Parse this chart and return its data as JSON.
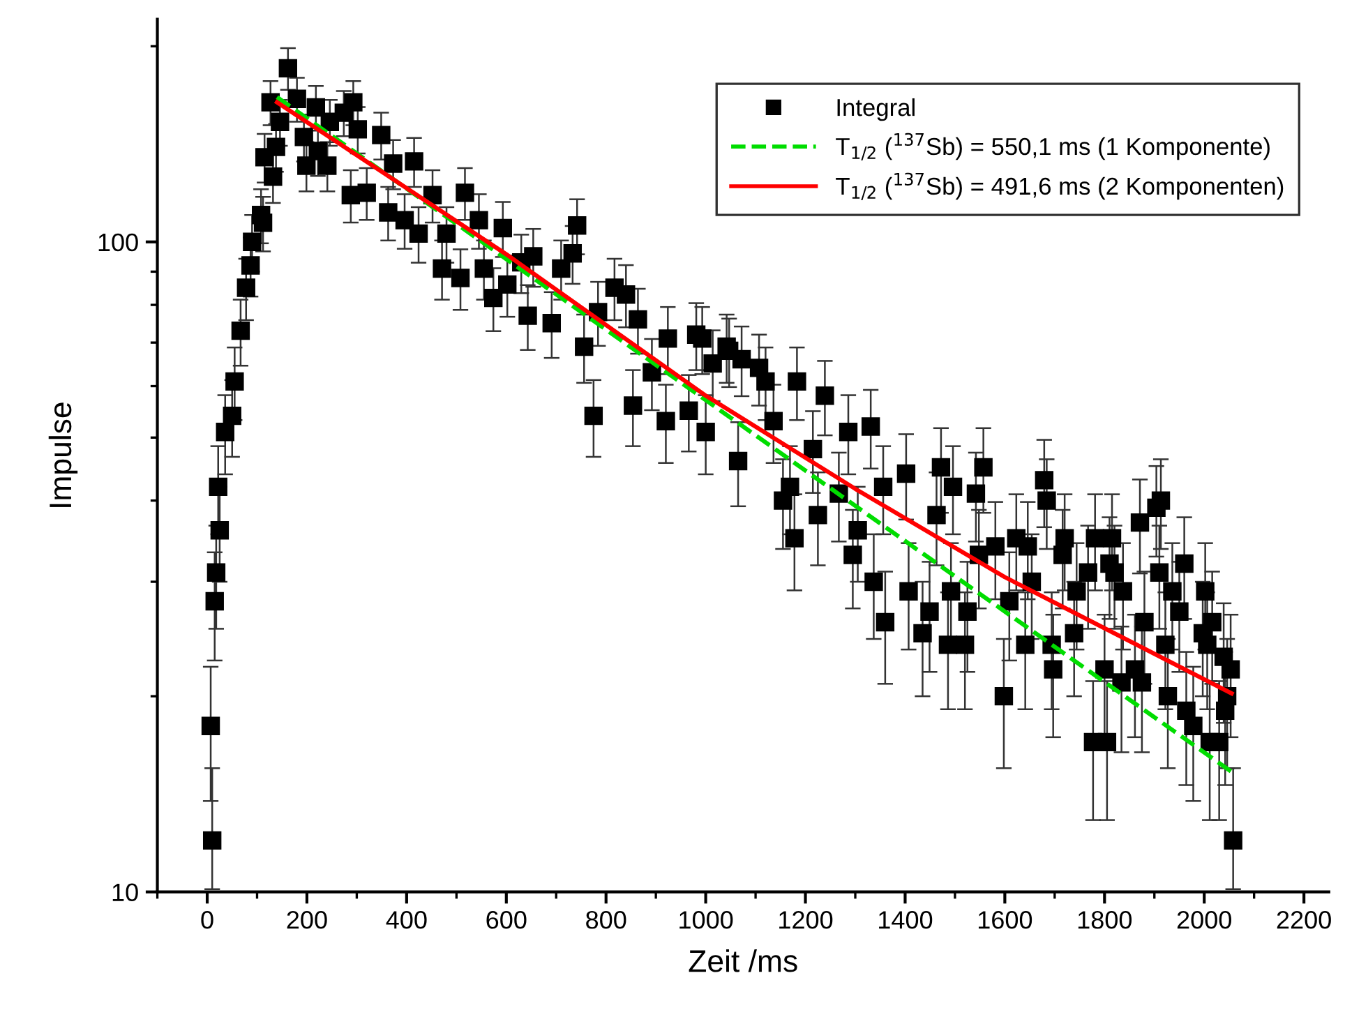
{
  "chart_data": {
    "type": "scatter",
    "xlabel": "Zeit /ms",
    "ylabel": "Impulse",
    "log": "y",
    "legend": "top right",
    "xlim": [
      -100,
      2250
    ],
    "xticks": [
      0,
      200,
      400,
      600,
      800,
      1000,
      1200,
      1400,
      1600,
      1800,
      2000,
      2200
    ],
    "ylim": [
      10,
      220
    ],
    "yticks": [
      10,
      100
    ],
    "series": [
      {
        "name": "Integral",
        "marker": "square",
        "color": "#000000",
        "x": [
          7,
          10,
          15,
          18,
          22,
          25,
          36,
          50,
          55,
          67,
          78,
          87,
          90,
          108,
          112,
          115,
          127,
          132,
          138,
          146,
          162,
          180,
          194,
          199,
          218,
          222,
          241,
          246,
          274,
          288,
          293,
          302,
          320,
          349,
          363,
          373,
          396,
          415,
          424,
          452,
          471,
          480,
          508,
          517,
          545,
          555,
          574,
          593,
          602,
          630,
          643,
          654,
          691,
          710,
          733,
          742,
          756,
          775,
          784,
          817,
          840,
          854,
          864,
          892,
          920,
          924,
          966,
          981,
          993,
          1000,
          1014,
          1042,
          1047,
          1065,
          1072,
          1107,
          1120,
          1136,
          1155,
          1169,
          1178,
          1183,
          1215,
          1225,
          1239,
          1267,
          1286,
          1295,
          1305,
          1331,
          1337,
          1356,
          1360,
          1402,
          1407,
          1435,
          1449,
          1463,
          1472,
          1486,
          1492,
          1496,
          1520,
          1525,
          1542,
          1548,
          1557,
          1581,
          1598,
          1609,
          1623,
          1641,
          1646,
          1654,
          1679,
          1684,
          1694,
          1697,
          1716,
          1720,
          1739,
          1744,
          1767,
          1777,
          1781,
          1800,
          1805,
          1810,
          1815,
          1820,
          1834,
          1837,
          1861,
          1871,
          1875,
          1880,
          1904,
          1910,
          1913,
          1922,
          1927,
          1936,
          1950,
          1960,
          1964,
          1978,
          1997,
          2002,
          2006,
          2011,
          2016,
          2030,
          2039,
          2042,
          2046,
          2053,
          2058
        ],
        "values": [
          18,
          12,
          28,
          31,
          42,
          36,
          51,
          54,
          61,
          73,
          85,
          92,
          100,
          110,
          107,
          135,
          164,
          126,
          140,
          153,
          185,
          166,
          145,
          131,
          161,
          138,
          131,
          153,
          158,
          118,
          164,
          149,
          119,
          146,
          111,
          132,
          108,
          133,
          103,
          118,
          91,
          103,
          88,
          119,
          108,
          91,
          82,
          105,
          86,
          93,
          77,
          95,
          75,
          91,
          96,
          106,
          69,
          54,
          78,
          85,
          83,
          56,
          76,
          63,
          53,
          71,
          55,
          72,
          71,
          51,
          65,
          69,
          68,
          46,
          66,
          64,
          61,
          53,
          40,
          42,
          35,
          61,
          48,
          38,
          58,
          41,
          51,
          33,
          36,
          52,
          30,
          42,
          26,
          44,
          29,
          25,
          27,
          38,
          45,
          24,
          29,
          42,
          24,
          27,
          41,
          33,
          45,
          34,
          20,
          28,
          35,
          24,
          34,
          30,
          43,
          40,
          24,
          22,
          33,
          35,
          25,
          29,
          31,
          17,
          35,
          22,
          17,
          32,
          35,
          31,
          21,
          29,
          22,
          37,
          21,
          26,
          39,
          31,
          40,
          24,
          20,
          29,
          27,
          32,
          19,
          18,
          25,
          29,
          24,
          17,
          26,
          17,
          23,
          19,
          20,
          22,
          12
        ],
        "errors": [
          4.2,
          [
            10.1,
            15.5
          ],
          5.3,
          5.6,
          6.5,
          6,
          7.1,
          7.3,
          7.8,
          8.5,
          9.2,
          9.6,
          10,
          10.5,
          10.3,
          11.6,
          12.8,
          11.2,
          11.8,
          12.4,
          13.6,
          12.9,
          12,
          11.4,
          12.7,
          11.7,
          11.4,
          12.4,
          12.6,
          10.9,
          12.8,
          12.2,
          10.9,
          12.1,
          10.5,
          11.5,
          10.4,
          11.5,
          10.1,
          10.9,
          9.5,
          10.1,
          9.4,
          10.9,
          10.4,
          9.5,
          9.1,
          10.2,
          9.3,
          9.6,
          8.8,
          9.7,
          8.7,
          9.5,
          9.8,
          10.3,
          8.3,
          7.3,
          8.8,
          9.2,
          9.1,
          7.5,
          8.7,
          7.9,
          7.3,
          8.4,
          7.4,
          8.5,
          8.4,
          7.1,
          8.1,
          8.3,
          8.2,
          6.8,
          8.1,
          8,
          7.8,
          7.3,
          6.3,
          6.5,
          5.9,
          7.8,
          6.9,
          6.2,
          7.6,
          6.4,
          7.1,
          5.7,
          6,
          7.2,
          5.5,
          6.5,
          5.1,
          6.6,
          5.4,
          5,
          5.2,
          6.2,
          6.7,
          4.9,
          5.4,
          6.5,
          4.9,
          5.2,
          6.4,
          5.7,
          6.7,
          5.8,
          4.5,
          5.3,
          5.9,
          4.9,
          5.8,
          5.5,
          6.6,
          6.3,
          4.9,
          4.7,
          5.7,
          5.9,
          5,
          5.4,
          5.6,
          4.1,
          5.9,
          4.7,
          4.1,
          5.7,
          5.9,
          5.6,
          4.6,
          5.4,
          4.7,
          6.1,
          4.6,
          5.1,
          6.2,
          5.6,
          6.3,
          4.9,
          4.5,
          5.4,
          5.2,
          5.7,
          4.4,
          4.2,
          5,
          5.4,
          4.9,
          4.1,
          5.1,
          4.1,
          4.8,
          4.4,
          4.5,
          4.7,
          [
            10.1,
            15.5
          ]
        ]
      },
      {
        "name": "T$_{1/2}$ ($^{137}$Sb) = 550,1 ms (1 Komponente)",
        "type": "line",
        "line_style": "dashed",
        "color": "#00dd00",
        "x": [
          140,
          600,
          1000,
          1600,
          2055
        ],
        "values": [
          167,
          94.1,
          57.1,
          27.0,
          15.3
        ]
      },
      {
        "name": "T$_{1/2}$ ($^{137}$Sb) = 491,6 ms (2 Komponenten)",
        "type": "line",
        "line_style": "solid",
        "color": "#ff0000",
        "x": [
          140,
          300,
          600,
          1000,
          1300,
          1600,
          2055
        ],
        "values": [
          164,
          136,
          95.7,
          58,
          41.7,
          30.5,
          20.2
        ]
      }
    ]
  }
}
